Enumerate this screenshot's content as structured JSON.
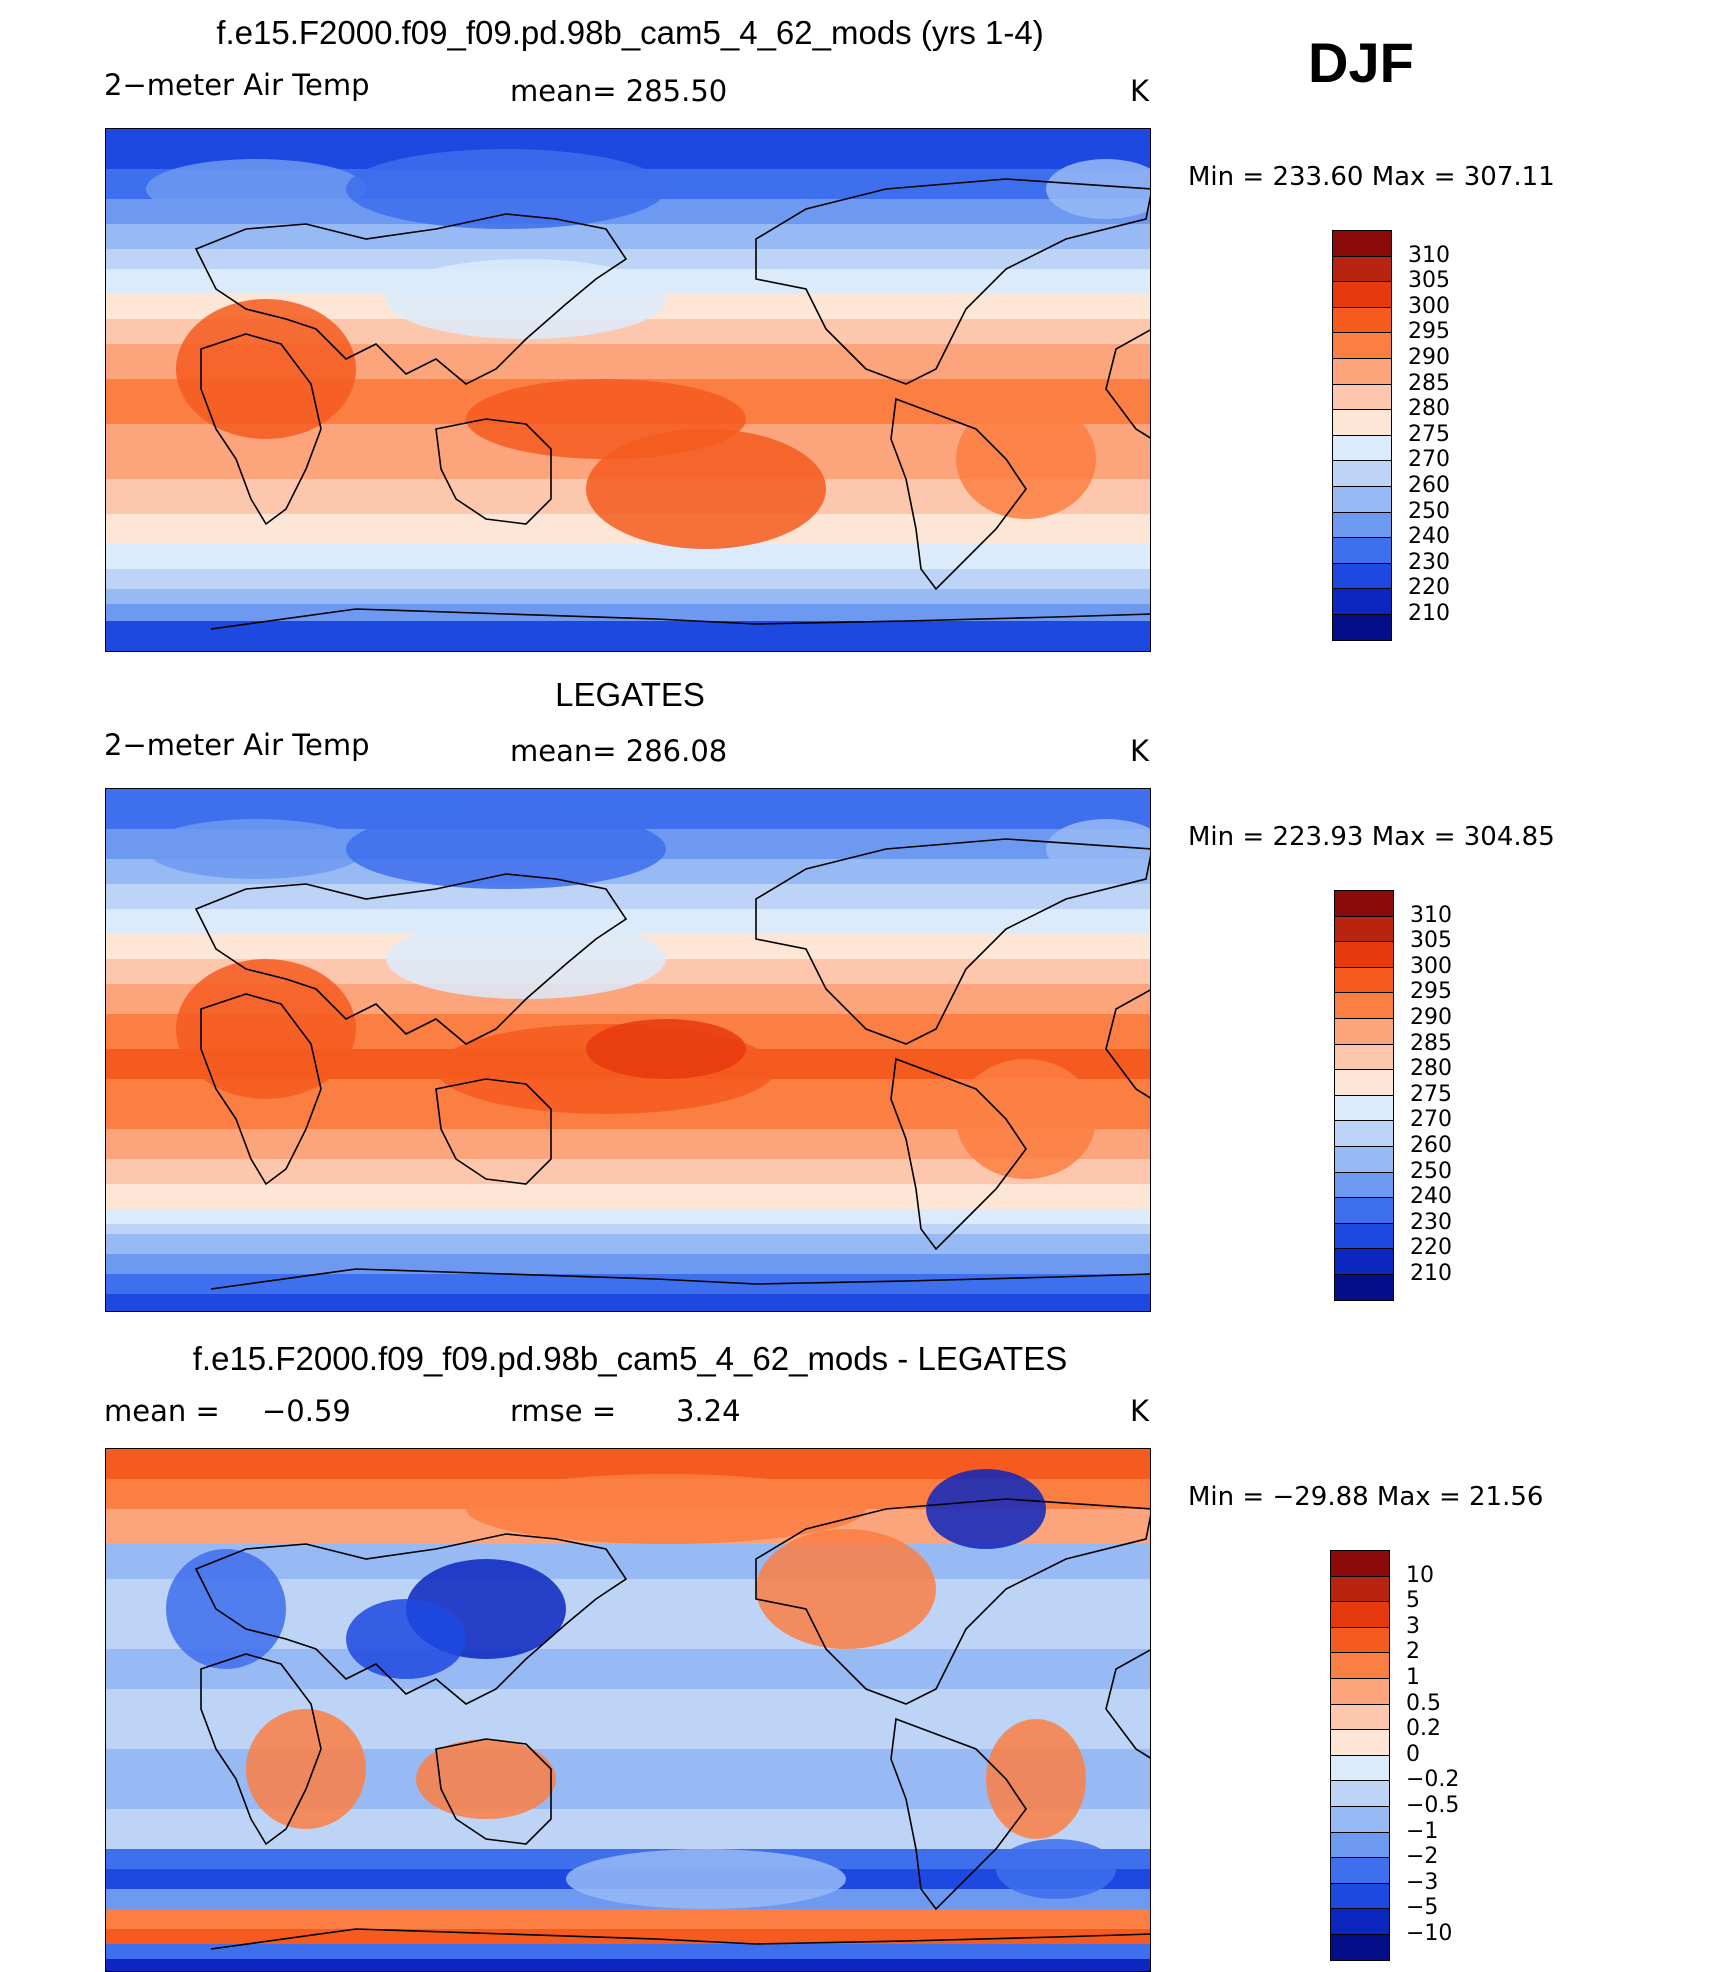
{
  "season_label": "DJF",
  "chart_data": [
    {
      "type": "heatmap",
      "title": "f.e15.F2000.f09_f09.pd.98b_cam5_4_62_mods (yrs 1-4)",
      "variable": "2−meter Air Temp",
      "stat_text": "mean=  285.50",
      "units": "K",
      "minmax_text": "Min  =  233.60  Max  =  307.11",
      "min": 233.6,
      "max": 307.11,
      "levels": [
        "310",
        "305",
        "300",
        "295",
        "290",
        "285",
        "280",
        "275",
        "270",
        "260",
        "250",
        "240",
        "230",
        "220",
        "210"
      ],
      "colors": [
        "#8b0a0a",
        "#b82410",
        "#e63a0e",
        "#f55a1e",
        "#fb7f43",
        "#fca47c",
        "#fdc7ad",
        "#fee6d6",
        "#dcebfb",
        "#bdd4f7",
        "#98baf4",
        "#6d9af0",
        "#3e6fec",
        "#1d49e1",
        "#0c27bf",
        "#040e88"
      ]
    },
    {
      "type": "heatmap",
      "title": "LEGATES",
      "variable": "2−meter Air Temp",
      "stat_text": "mean=  286.08",
      "units": "K",
      "minmax_text": "Min  =  223.93  Max  =  304.85",
      "min": 223.93,
      "max": 304.85,
      "levels": [
        "310",
        "305",
        "300",
        "295",
        "290",
        "285",
        "280",
        "275",
        "270",
        "260",
        "250",
        "240",
        "230",
        "220",
        "210"
      ],
      "colors": [
        "#8b0a0a",
        "#b82410",
        "#e63a0e",
        "#f55a1e",
        "#fb7f43",
        "#fca47c",
        "#fdc7ad",
        "#fee6d6",
        "#dcebfb",
        "#bdd4f7",
        "#98baf4",
        "#6d9af0",
        "#3e6fec",
        "#1d49e1",
        "#0c27bf",
        "#040e88"
      ]
    },
    {
      "type": "heatmap",
      "title": "f.e15.F2000.f09_f09.pd.98b_cam5_4_62_mods - LEGATES",
      "stat_label": "mean  =",
      "stat_value": "−0.59",
      "rmse_label": "rmse  =",
      "rmse_value": "3.24",
      "units": "K",
      "minmax_text": "Min  =  −29.88  Max  =    21.56",
      "min": -29.88,
      "max": 21.56,
      "levels": [
        "10",
        "5",
        "3",
        "2",
        "1",
        "0.5",
        "0.2",
        "0",
        "−0.2",
        "−0.5",
        "−1",
        "−2",
        "−3",
        "−5",
        "−10"
      ],
      "colors": [
        "#8b0a0a",
        "#b82410",
        "#e63a0e",
        "#f55a1e",
        "#fb7f43",
        "#fca47c",
        "#fdc7ad",
        "#fee6d6",
        "#dcebfb",
        "#bdd4f7",
        "#98baf4",
        "#6d9af0",
        "#3e6fec",
        "#1d49e1",
        "#0c27bf",
        "#040e88"
      ]
    }
  ]
}
